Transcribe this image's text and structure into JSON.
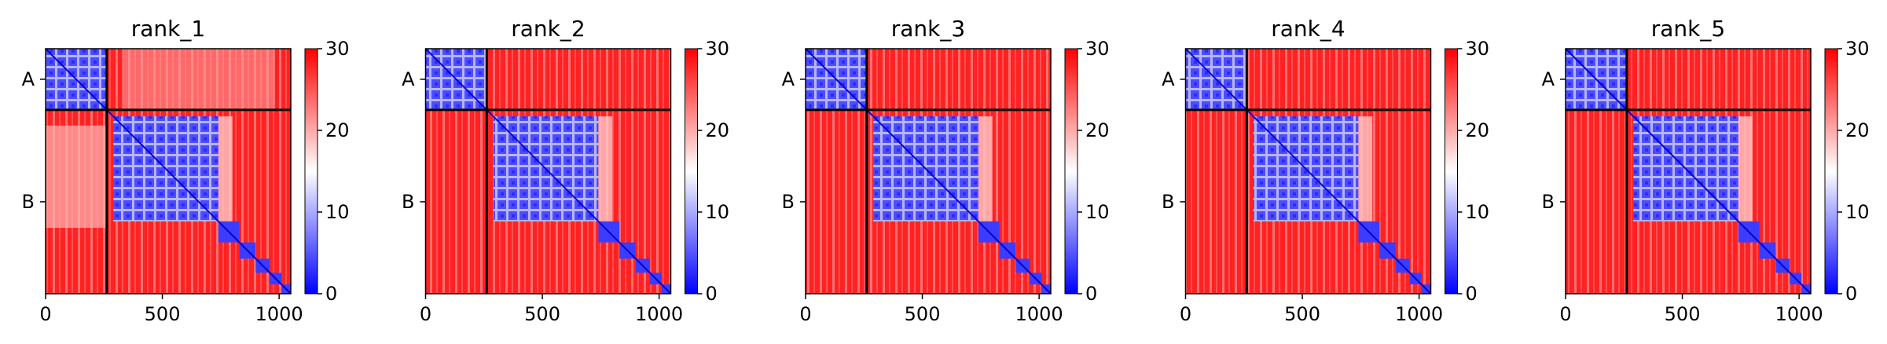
{
  "chart_data": {
    "type": "heatmap",
    "description": "Predicted aligned error (PAE) matrices for 5 ranked models of a two-chain complex (chains A and B)",
    "panels": [
      {
        "title": "rank_1"
      },
      {
        "title": "rank_2"
      },
      {
        "title": "rank_3"
      },
      {
        "title": "rank_4"
      },
      {
        "title": "rank_5"
      }
    ],
    "x_range": [
      0,
      1050
    ],
    "x_ticks": [
      0,
      500,
      1000
    ],
    "y_tick_labels": [
      "A",
      "B"
    ],
    "chain_boundary": 262,
    "colorbar": {
      "range": [
        0,
        30
      ],
      "ticks": [
        0,
        10,
        20,
        30
      ],
      "colors": [
        "#0000ff",
        "#ffffff",
        "#ff0000"
      ]
    }
  }
}
